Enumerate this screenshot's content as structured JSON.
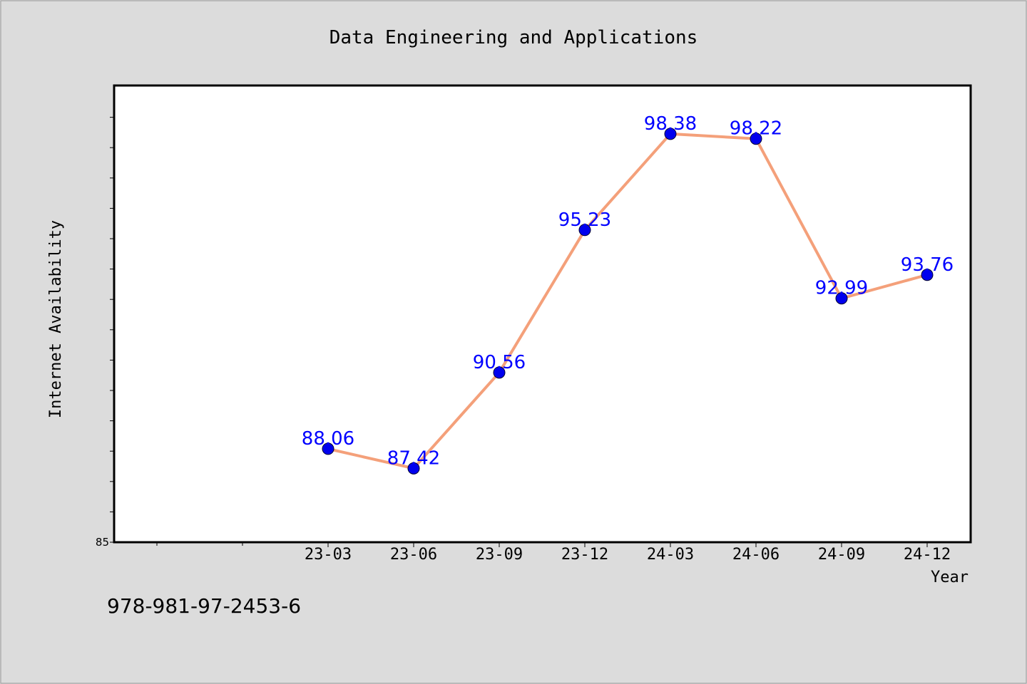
{
  "chart_data": {
    "type": "line",
    "title": "Data Engineering and Applications",
    "xlabel": "Year",
    "ylabel": "Internet Availability",
    "categories": [
      "23-03",
      "23-06",
      "23-09",
      "23-12",
      "24-03",
      "24-06",
      "24-09",
      "24-12"
    ],
    "series": [
      {
        "values": [
          88.06,
          87.42,
          90.56,
          95.23,
          98.38,
          98.22,
          92.99,
          93.76
        ]
      }
    ],
    "ylim": [
      85,
      100
    ],
    "y_tick_labels": [
      "85"
    ],
    "grid": false,
    "colors": {
      "line": "#f4a07a",
      "marker": "#0000ee",
      "data_label": "#0000ff",
      "background": "#dcdcdc",
      "plot_area": "#ffffff"
    }
  },
  "footer": {
    "isbn": "978-981-97-2453-6"
  }
}
